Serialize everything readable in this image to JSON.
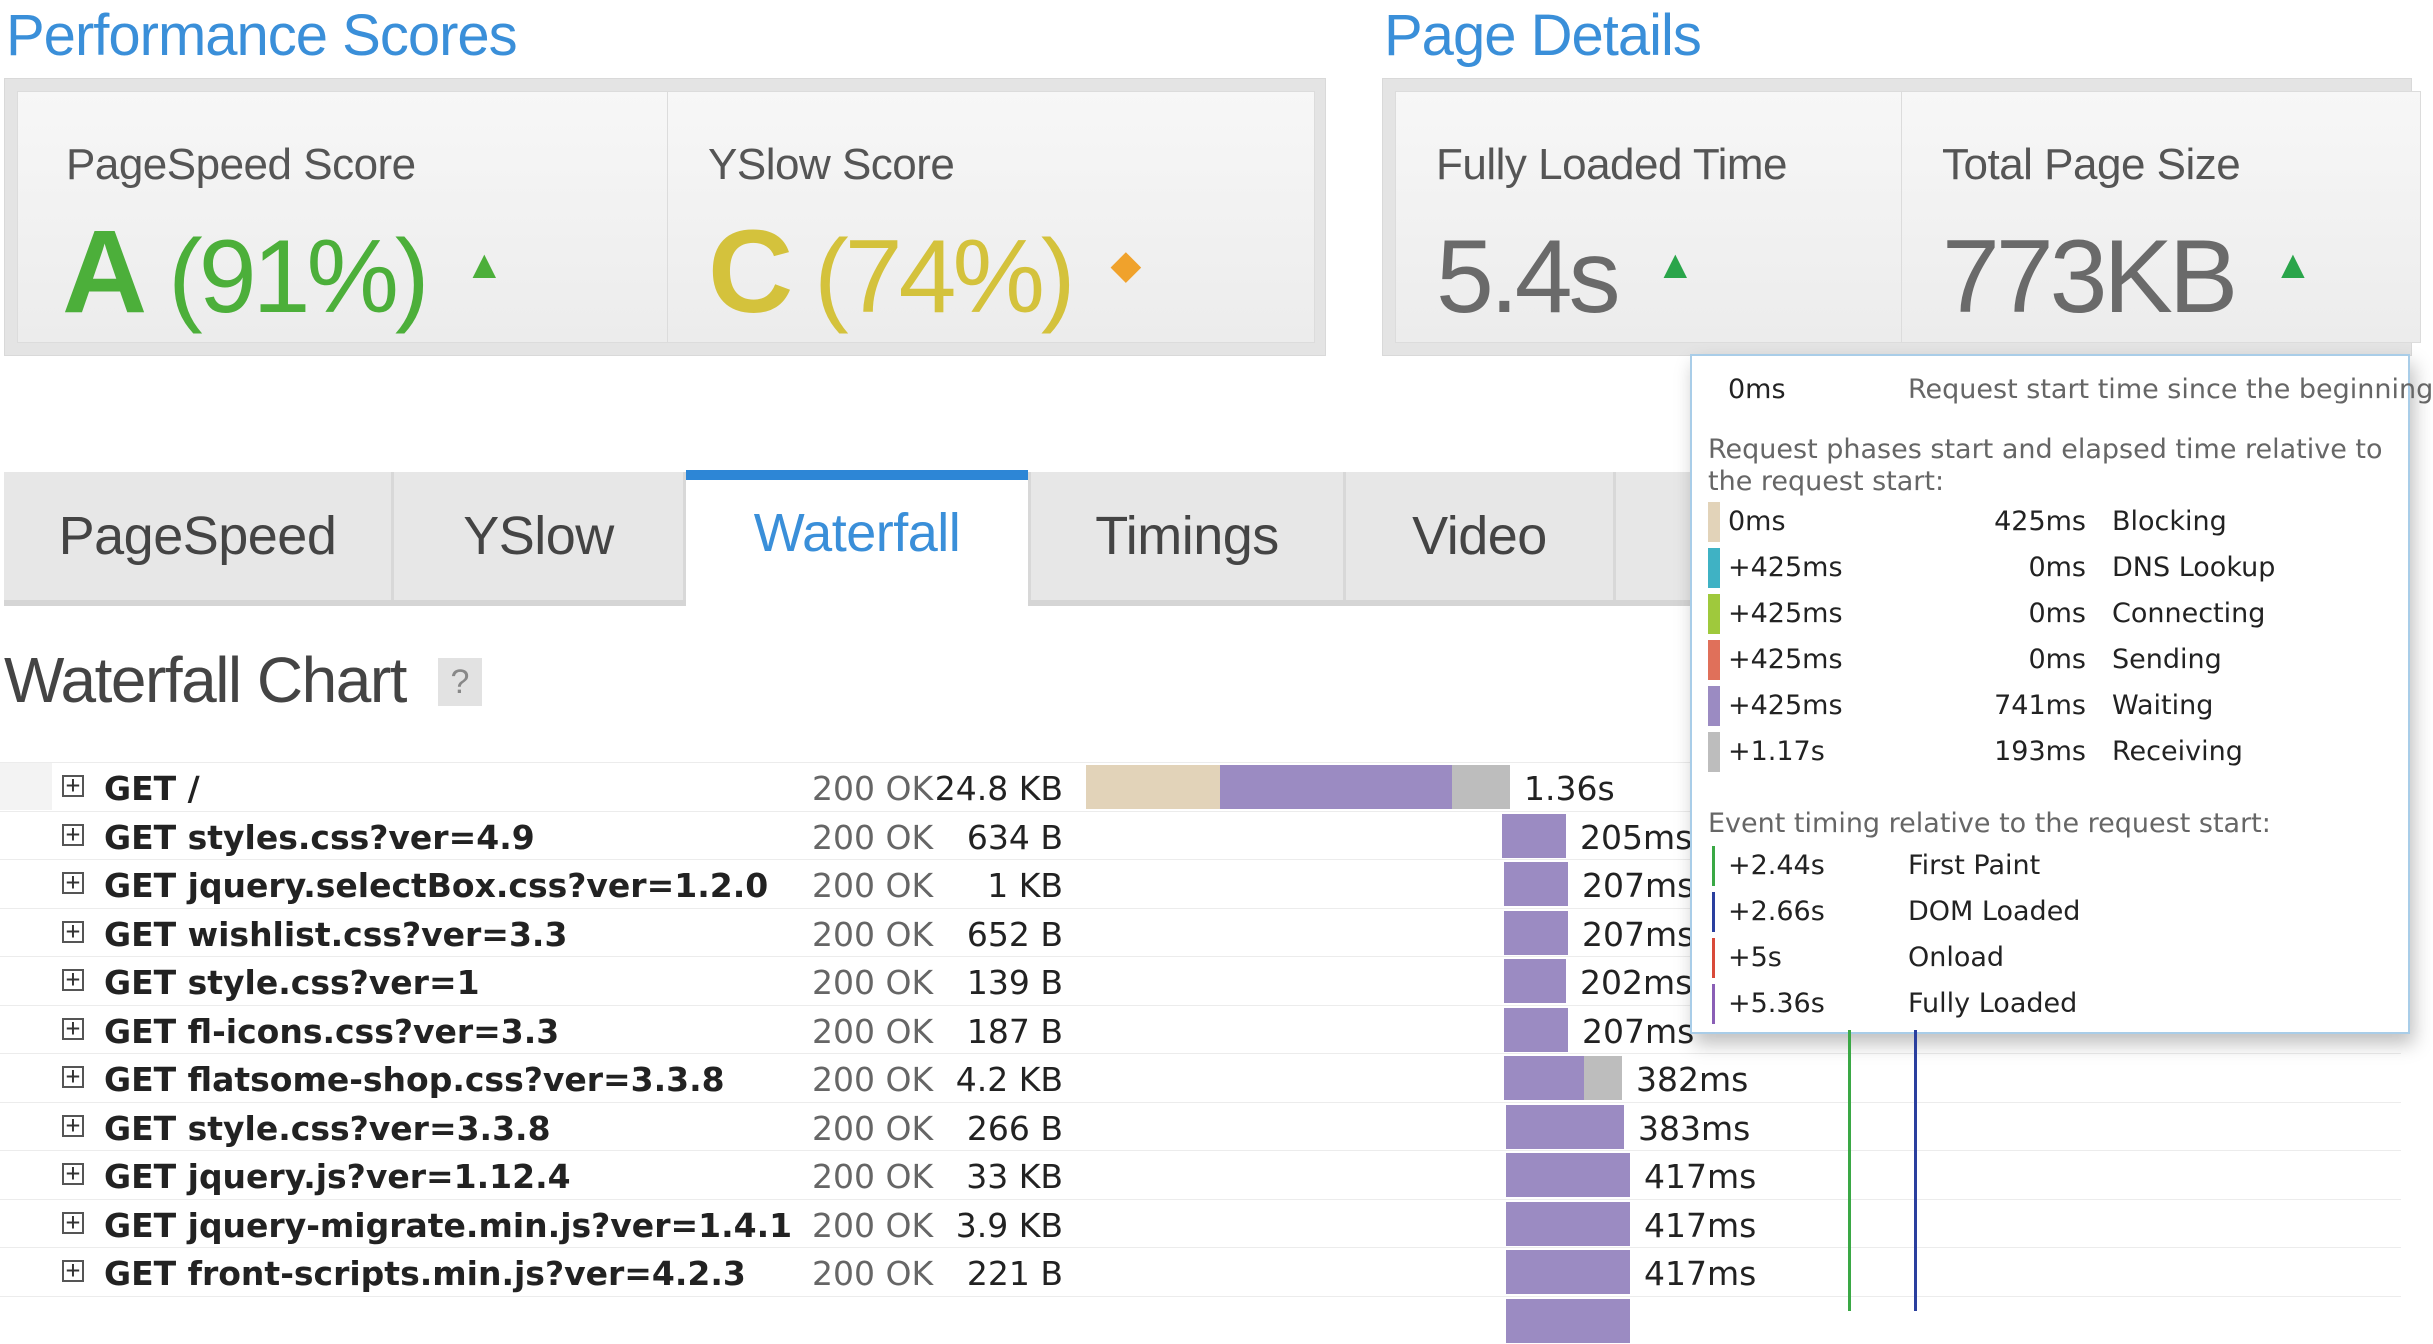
{
  "performance": {
    "title": "Performance Scores",
    "pagespeed": {
      "label": "PageSpeed Score",
      "grade": "A",
      "percent": "(91%)",
      "trend": "▲",
      "color": "#4caf3a"
    },
    "yslow": {
      "label": "YSlow Score",
      "grade": "C",
      "percent": "(74%)",
      "trend": "◆",
      "color": "#d4c23c"
    }
  },
  "page_details": {
    "title": "Page Details",
    "fully_loaded": {
      "label": "Fully Loaded Time",
      "value": "5.4s",
      "trend": "▲"
    },
    "total_size": {
      "label": "Total Page Size",
      "value": "773KB",
      "trend": "▲"
    }
  },
  "tabs": [
    {
      "label": "PageSpeed",
      "active": false
    },
    {
      "label": "YSlow",
      "active": false
    },
    {
      "label": "Waterfall",
      "active": true
    },
    {
      "label": "Timings",
      "active": false
    },
    {
      "label": "Video",
      "active": false
    }
  ],
  "waterfall": {
    "title": "Waterfall Chart",
    "help": "?",
    "rows": [
      {
        "url": "GET /",
        "status": "200 OK",
        "size": "24.8 KB",
        "duration": "1.36s"
      },
      {
        "url": "GET styles.css?ver=4.9",
        "status": "200 OK",
        "size": "634 B",
        "duration": "205ms"
      },
      {
        "url": "GET jquery.selectBox.css?ver=1.2.0",
        "status": "200 OK",
        "size": "1 KB",
        "duration": "207ms"
      },
      {
        "url": "GET wishlist.css?ver=3.3",
        "status": "200 OK",
        "size": "652 B",
        "duration": "207ms"
      },
      {
        "url": "GET style.css?ver=1",
        "status": "200 OK",
        "size": "139 B",
        "duration": "202ms"
      },
      {
        "url": "GET fl-icons.css?ver=3.3",
        "status": "200 OK",
        "size": "187 B",
        "duration": "207ms"
      },
      {
        "url": "GET flatsome-shop.css?ver=3.3.8",
        "status": "200 OK",
        "size": "4.2 KB",
        "duration": "382ms"
      },
      {
        "url": "GET style.css?ver=3.3.8",
        "status": "200 OK",
        "size": "266 B",
        "duration": "383ms"
      },
      {
        "url": "GET jquery.js?ver=1.12.4",
        "status": "200 OK",
        "size": "33 KB",
        "duration": "417ms"
      },
      {
        "url": "GET jquery-migrate.min.js?ver=1.4.1",
        "status": "200 OK",
        "size": "3.9 KB",
        "duration": "417ms"
      },
      {
        "url": "GET front-scripts.min.js?ver=4.2.3",
        "status": "200 OK",
        "size": "221 B",
        "duration": "417ms"
      }
    ],
    "phase_colors": {
      "blocking": "#e2d3b9",
      "dns": "#3fb2c4",
      "connecting": "#9fc93c",
      "sending": "#e0705a",
      "waiting": "#9b8bc2",
      "receiving": "#bdbdbd"
    }
  },
  "tooltip": {
    "start_value": "0ms",
    "start_note": "Request start time since the beginning",
    "phases_note": "Request phases start and elapsed time relative to the request start:",
    "phases": [
      {
        "start": "0ms",
        "elapsed": "425ms",
        "name": "Blocking",
        "color": "#e2d3b9"
      },
      {
        "start": "+425ms",
        "elapsed": "0ms",
        "name": "DNS Lookup",
        "color": "#3fb2c4"
      },
      {
        "start": "+425ms",
        "elapsed": "0ms",
        "name": "Connecting",
        "color": "#9fc93c"
      },
      {
        "start": "+425ms",
        "elapsed": "0ms",
        "name": "Sending",
        "color": "#e0705a"
      },
      {
        "start": "+425ms",
        "elapsed": "741ms",
        "name": "Waiting",
        "color": "#9b8bc2"
      },
      {
        "start": "+1.17s",
        "elapsed": "193ms",
        "name": "Receiving",
        "color": "#bdbdbd"
      }
    ],
    "events_note": "Event timing relative to the request start:",
    "events": [
      {
        "time": "+2.44s",
        "name": "First Paint",
        "color": "#3aa845"
      },
      {
        "time": "+2.66s",
        "name": "DOM Loaded",
        "color": "#2a3f9e"
      },
      {
        "time": "+5s",
        "name": "Onload",
        "color": "#d94a3a"
      },
      {
        "time": "+5.36s",
        "name": "Fully Loaded",
        "color": "#8a5fb6"
      }
    ]
  }
}
